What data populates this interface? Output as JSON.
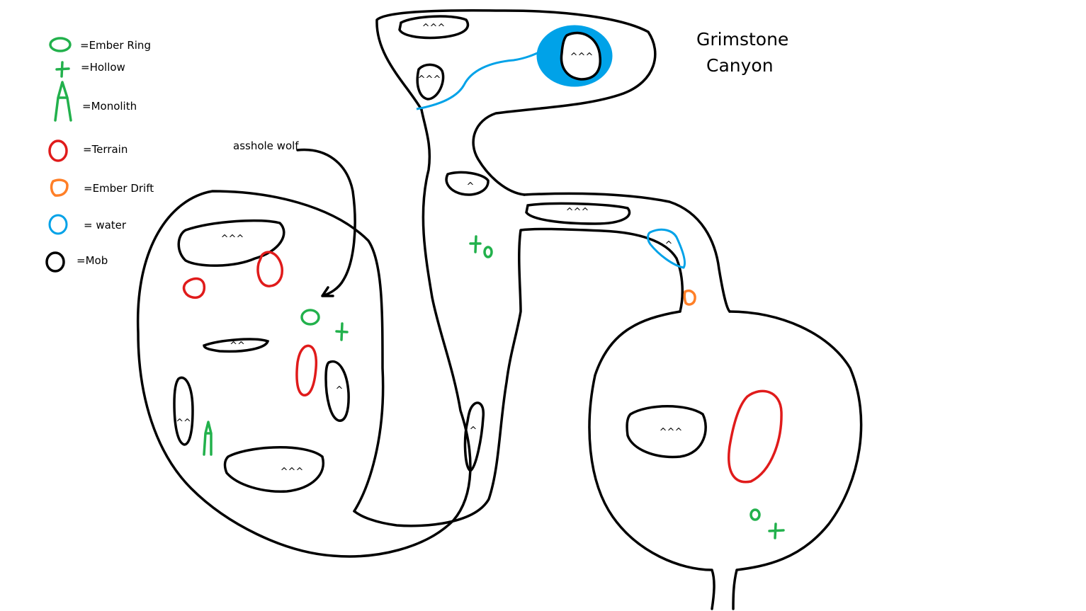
{
  "title": {
    "line1": "Grimstone",
    "line2": "Canyon"
  },
  "annotation": "asshole wolf",
  "legend": [
    {
      "key": "ember_ring",
      "label": "=Ember Ring",
      "color": "#22b14c"
    },
    {
      "key": "hollow",
      "label": "=Hollow",
      "color": "#22b14c"
    },
    {
      "key": "monolith",
      "label": "=Monolith",
      "color": "#22b14c"
    },
    {
      "key": "terrain",
      "label": "=Terrain",
      "color": "#e01b1b"
    },
    {
      "key": "ember_drift",
      "label": "=Ember Drift",
      "color": "#ff7f27"
    },
    {
      "key": "water",
      "label": "= water",
      "color": "#00a2e8"
    },
    {
      "key": "mob",
      "label": "=Mob",
      "color": "#000000"
    }
  ],
  "mob_labels": {
    "top_1": "^^^",
    "top_2": "^^^",
    "top_lake": "^^^",
    "pass_1": "^",
    "pass_2": "^^^",
    "pass_water": "^",
    "corridor": "^",
    "west_1": "^^^",
    "west_2": "^^",
    "west_3": "^",
    "west_4": "^^",
    "west_5": "^^^",
    "east_1": "^^^"
  }
}
